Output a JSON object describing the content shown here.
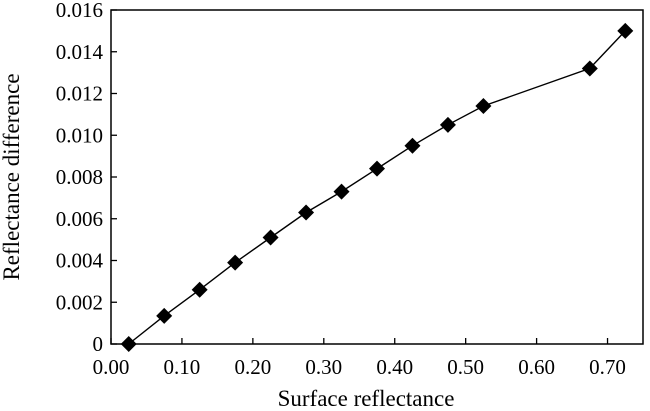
{
  "chart_data": {
    "type": "line",
    "title": "",
    "xlabel": "Surface reflectance",
    "ylabel": "Reflectance difference",
    "xlim": [
      0.0,
      0.75
    ],
    "ylim": [
      0,
      0.016
    ],
    "x_ticks": [
      "0.00",
      "0.10",
      "0.20",
      "0.30",
      "0.40",
      "0.50",
      "0.60",
      "0.70"
    ],
    "y_ticks": [
      "0",
      "0.002",
      "0.004",
      "0.006",
      "0.008",
      "0.010",
      "0.012",
      "0.014",
      "0.016"
    ],
    "grid": false,
    "marker": "diamond",
    "series": [
      {
        "x": [
          0.025,
          0.075,
          0.125,
          0.175,
          0.225,
          0.275,
          0.325,
          0.375,
          0.425,
          0.475,
          0.525,
          0.575,
          0.625,
          0.675,
          0.725
        ],
        "y": [
          0.0,
          0.00135,
          0.0026,
          0.0039,
          0.0051,
          0.0063,
          0.0073,
          0.0084,
          0.0095,
          0.0105,
          0.0114,
          null,
          null,
          0.0132,
          0.015
        ]
      }
    ],
    "colors": {
      "line": "#000000",
      "marker": "#000000",
      "axis": "#000000"
    }
  }
}
